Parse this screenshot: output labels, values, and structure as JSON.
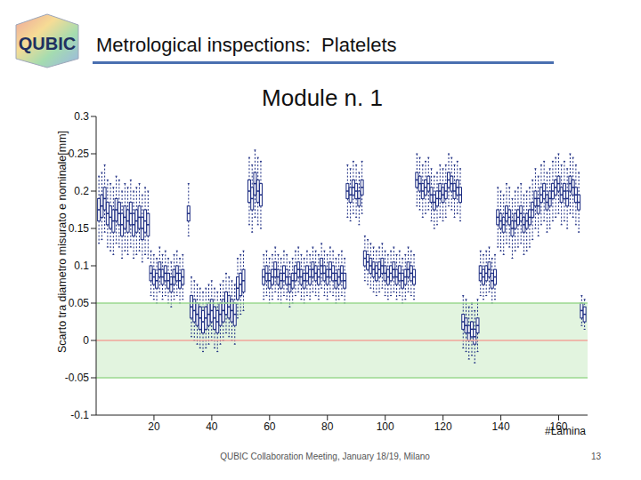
{
  "logo_text": "QUBIC",
  "header": "Metrological inspections:  Platelets",
  "footer": "QUBIC Collaboration Meeting, January 18/19, Milano",
  "page": 13,
  "chart_data": {
    "type": "box",
    "title": "Module n. 1",
    "x_label": "#Lamina",
    "y_label": "Scarto tra diametro misurato e nominale[mm]",
    "color": "#1a2a80",
    "grid": false,
    "xlim": [
      0,
      170
    ],
    "xticks": [
      20,
      40,
      60,
      80,
      100,
      120,
      140,
      160
    ],
    "ylim": [
      -0.1,
      0.3
    ],
    "yticks": [
      -0.1,
      -0.05,
      0,
      0.05,
      0.1,
      0.15,
      0.2,
      0.25,
      0.3
    ],
    "tolerance_band": [
      -0.05,
      0.05
    ],
    "reference_y": 0,
    "x": [
      1,
      2,
      3,
      4,
      5,
      6,
      7,
      8,
      9,
      10,
      11,
      12,
      13,
      14,
      15,
      16,
      17,
      18,
      19,
      20,
      21,
      22,
      23,
      24,
      25,
      26,
      27,
      28,
      29,
      30,
      32,
      33,
      34,
      35,
      36,
      37,
      38,
      39,
      40,
      41,
      42,
      43,
      44,
      45,
      46,
      47,
      48,
      49,
      50,
      51,
      53,
      54,
      55,
      56,
      57,
      58,
      59,
      60,
      61,
      62,
      63,
      64,
      65,
      66,
      67,
      68,
      69,
      70,
      71,
      72,
      73,
      74,
      75,
      76,
      77,
      78,
      79,
      80,
      81,
      82,
      83,
      84,
      85,
      86,
      87,
      88,
      89,
      90,
      91,
      92,
      93,
      94,
      95,
      96,
      97,
      98,
      99,
      100,
      101,
      102,
      103,
      104,
      105,
      106,
      107,
      108,
      109,
      110,
      111,
      112,
      113,
      114,
      115,
      116,
      117,
      118,
      119,
      120,
      121,
      122,
      123,
      124,
      125,
      126,
      127,
      128,
      129,
      130,
      131,
      132,
      133,
      134,
      135,
      136,
      137,
      138,
      139,
      140,
      141,
      142,
      143,
      144,
      145,
      146,
      147,
      148,
      149,
      150,
      151,
      152,
      153,
      154,
      155,
      156,
      157,
      158,
      159,
      160,
      161,
      162,
      163,
      164,
      165,
      166,
      167,
      168,
      169
    ],
    "min": [
      0.13,
      0.135,
      0.145,
      0.125,
      0.12,
      0.115,
      0.13,
      0.125,
      0.11,
      0.12,
      0.115,
      0.125,
      0.11,
      0.115,
      0.12,
      0.105,
      0.115,
      0.11,
      0.06,
      0.055,
      0.05,
      0.065,
      0.055,
      0.06,
      0.05,
      0.045,
      0.055,
      0.06,
      0.05,
      0.055,
      0.14,
      0.005,
      0,
      -0.005,
      -0.01,
      -0.015,
      -0.01,
      -0.005,
      0,
      -0.01,
      -0.015,
      -0.005,
      0,
      0.01,
      0.005,
      0,
      -0.005,
      0.03,
      0.035,
      0.04,
      0.155,
      0.145,
      0.165,
      0.155,
      0.15,
      0.055,
      0.06,
      0.05,
      0.055,
      0.065,
      0.055,
      0.05,
      0.06,
      0.055,
      0.045,
      0.05,
      0.06,
      0.065,
      0.055,
      0.05,
      0.06,
      0.055,
      0.065,
      0.06,
      0.055,
      0.07,
      0.06,
      0.055,
      0.065,
      0.06,
      0.05,
      0.055,
      0.06,
      0.05,
      0.165,
      0.16,
      0.17,
      0.165,
      0.155,
      0.17,
      0.08,
      0.075,
      0.07,
      0.065,
      0.06,
      0.065,
      0.07,
      0.06,
      0.055,
      0.06,
      0.065,
      0.055,
      0.06,
      0.05,
      0.055,
      0.065,
      0.06,
      0.055,
      0.18,
      0.175,
      0.165,
      0.17,
      0.175,
      0.16,
      0.15,
      0.155,
      0.165,
      0.16,
      0.165,
      0.18,
      0.175,
      0.165,
      0.17,
      0.16,
      -0.01,
      -0.015,
      -0.025,
      -0.02,
      -0.03,
      -0.015,
      0.06,
      0.055,
      0.06,
      0.065,
      0.05,
      0.055,
      0.125,
      0.12,
      0.115,
      0.13,
      0.125,
      0.11,
      0.12,
      0.125,
      0.13,
      0.115,
      0.12,
      0.125,
      0.135,
      0.15,
      0.14,
      0.155,
      0.16,
      0.145,
      0.15,
      0.16,
      0.165,
      0.17,
      0.155,
      0.16,
      0.15,
      0.17,
      0.165,
      0.155,
      0.145,
      0.02,
      0.015
    ],
    "q1": [
      0.16,
      0.165,
      0.175,
      0.155,
      0.15,
      0.145,
      0.16,
      0.155,
      0.14,
      0.15,
      0.145,
      0.155,
      0.14,
      0.145,
      0.15,
      0.135,
      0.145,
      0.14,
      0.08,
      0.075,
      0.07,
      0.085,
      0.075,
      0.08,
      0.07,
      0.065,
      0.075,
      0.08,
      0.07,
      0.075,
      0.16,
      0.03,
      0.025,
      0.02,
      0.015,
      0.01,
      0.015,
      0.02,
      0.025,
      0.015,
      0.01,
      0.02,
      0.025,
      0.035,
      0.03,
      0.025,
      0.02,
      0.055,
      0.06,
      0.065,
      0.185,
      0.175,
      0.195,
      0.185,
      0.18,
      0.075,
      0.08,
      0.07,
      0.075,
      0.085,
      0.075,
      0.07,
      0.08,
      0.075,
      0.065,
      0.07,
      0.08,
      0.085,
      0.075,
      0.07,
      0.08,
      0.075,
      0.085,
      0.08,
      0.075,
      0.09,
      0.08,
      0.075,
      0.085,
      0.08,
      0.07,
      0.075,
      0.08,
      0.07,
      0.19,
      0.185,
      0.195,
      0.19,
      0.18,
      0.195,
      0.1,
      0.095,
      0.09,
      0.085,
      0.08,
      0.085,
      0.09,
      0.08,
      0.075,
      0.08,
      0.085,
      0.075,
      0.08,
      0.07,
      0.075,
      0.085,
      0.08,
      0.075,
      0.205,
      0.2,
      0.19,
      0.195,
      0.2,
      0.185,
      0.175,
      0.18,
      0.19,
      0.185,
      0.19,
      0.205,
      0.2,
      0.19,
      0.195,
      0.185,
      0.015,
      0.01,
      0,
      0.005,
      -0.005,
      0.01,
      0.08,
      0.075,
      0.08,
      0.085,
      0.07,
      0.075,
      0.155,
      0.15,
      0.145,
      0.16,
      0.155,
      0.14,
      0.15,
      0.155,
      0.16,
      0.145,
      0.15,
      0.155,
      0.165,
      0.18,
      0.17,
      0.185,
      0.19,
      0.175,
      0.18,
      0.19,
      0.195,
      0.2,
      0.185,
      0.19,
      0.18,
      0.2,
      0.195,
      0.185,
      0.175,
      0.03,
      0.025
    ],
    "median": [
      0.175,
      0.18,
      0.19,
      0.17,
      0.165,
      0.16,
      0.175,
      0.17,
      0.155,
      0.165,
      0.16,
      0.17,
      0.155,
      0.16,
      0.165,
      0.15,
      0.16,
      0.155,
      0.09,
      0.085,
      0.08,
      0.095,
      0.085,
      0.09,
      0.08,
      0.075,
      0.085,
      0.09,
      0.08,
      0.085,
      0.17,
      0.045,
      0.04,
      0.035,
      0.03,
      0.025,
      0.03,
      0.035,
      0.04,
      0.03,
      0.025,
      0.035,
      0.04,
      0.05,
      0.045,
      0.04,
      0.035,
      0.07,
      0.075,
      0.08,
      0.2,
      0.19,
      0.21,
      0.2,
      0.195,
      0.085,
      0.09,
      0.08,
      0.085,
      0.095,
      0.085,
      0.08,
      0.09,
      0.085,
      0.075,
      0.08,
      0.09,
      0.095,
      0.085,
      0.08,
      0.09,
      0.085,
      0.095,
      0.09,
      0.085,
      0.1,
      0.09,
      0.085,
      0.095,
      0.09,
      0.08,
      0.085,
      0.09,
      0.08,
      0.2,
      0.195,
      0.205,
      0.2,
      0.19,
      0.205,
      0.11,
      0.105,
      0.1,
      0.095,
      0.09,
      0.095,
      0.1,
      0.09,
      0.085,
      0.09,
      0.095,
      0.085,
      0.09,
      0.08,
      0.085,
      0.095,
      0.09,
      0.085,
      0.215,
      0.21,
      0.2,
      0.205,
      0.21,
      0.195,
      0.185,
      0.19,
      0.2,
      0.195,
      0.2,
      0.215,
      0.21,
      0.2,
      0.205,
      0.195,
      0.025,
      0.02,
      0.01,
      0.015,
      0.005,
      0.02,
      0.09,
      0.085,
      0.09,
      0.095,
      0.08,
      0.085,
      0.165,
      0.16,
      0.155,
      0.17,
      0.165,
      0.15,
      0.16,
      0.165,
      0.17,
      0.155,
      0.16,
      0.165,
      0.175,
      0.19,
      0.18,
      0.195,
      0.2,
      0.185,
      0.19,
      0.2,
      0.205,
      0.21,
      0.195,
      0.2,
      0.19,
      0.21,
      0.205,
      0.195,
      0.185,
      0.04,
      0.035
    ],
    "q3": [
      0.19,
      0.195,
      0.205,
      0.185,
      0.18,
      0.175,
      0.19,
      0.185,
      0.17,
      0.18,
      0.175,
      0.185,
      0.17,
      0.175,
      0.18,
      0.165,
      0.175,
      0.17,
      0.1,
      0.095,
      0.09,
      0.105,
      0.095,
      0.1,
      0.09,
      0.085,
      0.095,
      0.1,
      0.09,
      0.095,
      0.18,
      0.06,
      0.055,
      0.05,
      0.045,
      0.04,
      0.045,
      0.05,
      0.055,
      0.045,
      0.04,
      0.05,
      0.055,
      0.065,
      0.06,
      0.055,
      0.05,
      0.085,
      0.09,
      0.095,
      0.215,
      0.205,
      0.225,
      0.215,
      0.21,
      0.095,
      0.1,
      0.09,
      0.095,
      0.105,
      0.095,
      0.09,
      0.1,
      0.095,
      0.085,
      0.09,
      0.1,
      0.105,
      0.095,
      0.09,
      0.1,
      0.095,
      0.105,
      0.1,
      0.095,
      0.11,
      0.1,
      0.095,
      0.105,
      0.1,
      0.09,
      0.095,
      0.1,
      0.09,
      0.21,
      0.205,
      0.215,
      0.21,
      0.2,
      0.215,
      0.12,
      0.115,
      0.11,
      0.105,
      0.1,
      0.105,
      0.11,
      0.1,
      0.095,
      0.1,
      0.105,
      0.095,
      0.1,
      0.09,
      0.095,
      0.105,
      0.1,
      0.095,
      0.225,
      0.22,
      0.21,
      0.215,
      0.22,
      0.205,
      0.195,
      0.2,
      0.21,
      0.205,
      0.21,
      0.225,
      0.22,
      0.21,
      0.215,
      0.205,
      0.035,
      0.03,
      0.02,
      0.025,
      0.015,
      0.03,
      0.1,
      0.095,
      0.1,
      0.105,
      0.09,
      0.095,
      0.175,
      0.17,
      0.165,
      0.18,
      0.175,
      0.16,
      0.17,
      0.175,
      0.18,
      0.165,
      0.17,
      0.175,
      0.185,
      0.2,
      0.19,
      0.205,
      0.21,
      0.195,
      0.2,
      0.21,
      0.215,
      0.22,
      0.205,
      0.21,
      0.2,
      0.22,
      0.215,
      0.205,
      0.195,
      0.05,
      0.045
    ],
    "max": [
      0.22,
      0.225,
      0.235,
      0.215,
      0.21,
      0.205,
      0.22,
      0.215,
      0.2,
      0.21,
      0.205,
      0.215,
      0.2,
      0.205,
      0.21,
      0.195,
      0.205,
      0.2,
      0.12,
      0.115,
      0.11,
      0.125,
      0.115,
      0.12,
      0.11,
      0.105,
      0.115,
      0.12,
      0.11,
      0.115,
      0.21,
      0.085,
      0.08,
      0.075,
      0.07,
      0.065,
      0.07,
      0.075,
      0.08,
      0.07,
      0.065,
      0.075,
      0.08,
      0.09,
      0.085,
      0.08,
      0.075,
      0.11,
      0.115,
      0.12,
      0.245,
      0.235,
      0.255,
      0.245,
      0.24,
      0.115,
      0.12,
      0.11,
      0.115,
      0.125,
      0.115,
      0.11,
      0.12,
      0.115,
      0.105,
      0.11,
      0.12,
      0.125,
      0.115,
      0.11,
      0.12,
      0.115,
      0.125,
      0.12,
      0.115,
      0.13,
      0.12,
      0.115,
      0.125,
      0.12,
      0.11,
      0.115,
      0.12,
      0.11,
      0.235,
      0.23,
      0.24,
      0.235,
      0.225,
      0.24,
      0.14,
      0.135,
      0.13,
      0.125,
      0.12,
      0.125,
      0.13,
      0.12,
      0.115,
      0.12,
      0.125,
      0.115,
      0.12,
      0.11,
      0.115,
      0.125,
      0.12,
      0.115,
      0.25,
      0.245,
      0.235,
      0.24,
      0.245,
      0.23,
      0.22,
      0.225,
      0.235,
      0.23,
      0.235,
      0.25,
      0.245,
      0.235,
      0.24,
      0.23,
      0.06,
      0.055,
      0.045,
      0.05,
      0.04,
      0.055,
      0.12,
      0.115,
      0.12,
      0.125,
      0.11,
      0.115,
      0.205,
      0.2,
      0.195,
      0.21,
      0.205,
      0.19,
      0.2,
      0.205,
      0.21,
      0.195,
      0.2,
      0.205,
      0.215,
      0.23,
      0.22,
      0.235,
      0.24,
      0.225,
      0.23,
      0.24,
      0.245,
      0.25,
      0.235,
      0.24,
      0.23,
      0.25,
      0.245,
      0.235,
      0.225,
      0.06,
      0.055
    ]
  }
}
